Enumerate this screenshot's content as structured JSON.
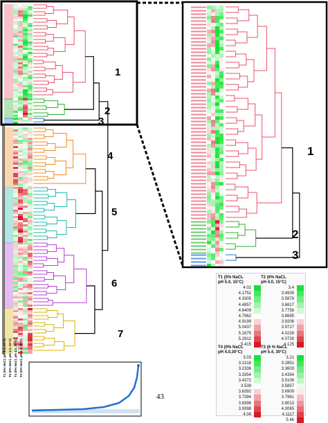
{
  "clusters_main": [
    "1",
    "2",
    "3",
    "4",
    "5",
    "6",
    "7"
  ],
  "clusters_zoom": [
    "1",
    "2",
    "3"
  ],
  "page_number": "43",
  "conditions": [
    "T1 (0% NaCl, pH 5.4, 15°C)",
    "T2 (6% NaCl, pH 4.0, 15°C)",
    "T4 (0% NaCl, pH 4.0, 30°C)",
    "T3 (6% NaCl, pH 5.4, 30°C)"
  ],
  "legend": {
    "t1": {
      "title": "T1 (0% NaCL\npH 5.4, 15°C)",
      "values": [
        "4.02",
        "4.1752",
        "4.3305",
        "4.4857",
        "4.6409",
        "4.7962",
        "4.9199",
        "5.0437",
        "5.1675",
        "5.2912",
        "5.415"
      ]
    },
    "t2": {
      "title": "T2 (6% NaCL\npH 4.0, 15°C)",
      "values": [
        "3.4",
        "3.4939",
        "3.5878",
        "3.6817",
        "3.7756",
        "3.8695",
        "3.9206",
        "3.9717",
        "4.0228",
        "4.0739",
        "4.125"
      ]
    },
    "t4": {
      "title": "T4 (0% NaCL\npH 4.0,30°C)",
      "values": [
        "3.03",
        "3.1318",
        "3.2336",
        "3.3354",
        "3.4372",
        "3.539",
        "3.6392",
        "3.7394",
        "3.8396",
        "3.9398",
        "4.04"
      ]
    },
    "t3": {
      "title": "T3 (6 % NaCL\npH 5.4, 30°C)",
      "values": [
        "3.21",
        "3.2851",
        "3.3603",
        "3.4354",
        "3.5106",
        "3.5857",
        "3.6909",
        "3.7961",
        "3.9013",
        "4.0065",
        "4.1117",
        "5.46"
      ]
    }
  },
  "colors": {
    "cluster1": "#e8506a",
    "cluster2": "#2db02d",
    "cluster3": "#1f6fd1",
    "cluster4": "#f08a1c",
    "cluster5": "#1fb8a8",
    "cluster6": "#b43fd0",
    "cluster7": "#d8b400",
    "link": "#000000",
    "heat_green": "#19b33a",
    "heat_red": "#d91a2a"
  }
}
